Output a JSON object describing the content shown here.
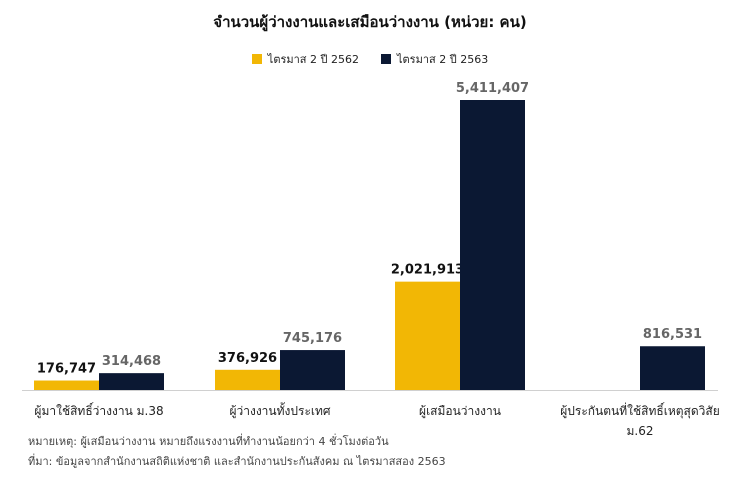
{
  "chart_data": {
    "type": "bar",
    "title": "จำนวนผู้ว่างงานและเสมือนว่างงาน (หน่วย: คน)",
    "categories": [
      [
        "ผู้มาใช้สิทธิ์ว่างงาน ม.38"
      ],
      [
        "ผู้ว่างงานทั้งประเทศ"
      ],
      [
        "ผู้เสมือนว่างงาน"
      ],
      [
        "ผู้ประกันตนที่ใช้สิทธิ์เหตุสุดวิสัย",
        "ม.62"
      ]
    ],
    "series": [
      {
        "name": "ไตรมาส 2 ปี 2562",
        "color": "#F2B705",
        "values": [
          176747,
          376926,
          2021913,
          null
        ],
        "labels": [
          "176,747",
          "376,926",
          "2,021,913",
          ""
        ],
        "label_color": "#111111"
      },
      {
        "name": "ไตรมาส 2 ปี 2563",
        "color": "#0B1833",
        "values": [
          314468,
          745176,
          5411407,
          816531
        ],
        "labels": [
          "314,468",
          "745,176",
          "5,411,407",
          "816,531"
        ],
        "label_color": "#666666"
      }
    ],
    "ylim": [
      0,
      5411407
    ],
    "grid": false,
    "legend_position": "top-center"
  },
  "notes": {
    "remark": "หมายเหตุ: ผู้เสมือนว่างงาน หมายถึงแรงงานที่ทำงานน้อยกว่า 4 ชั่วโมงต่อวัน",
    "source": "ที่มา: ข้อมูลจากสำนักงานสถิติแห่งชาติ และสำนักงานประกันสังคม ณ ไตรมาสสอง 2563"
  }
}
